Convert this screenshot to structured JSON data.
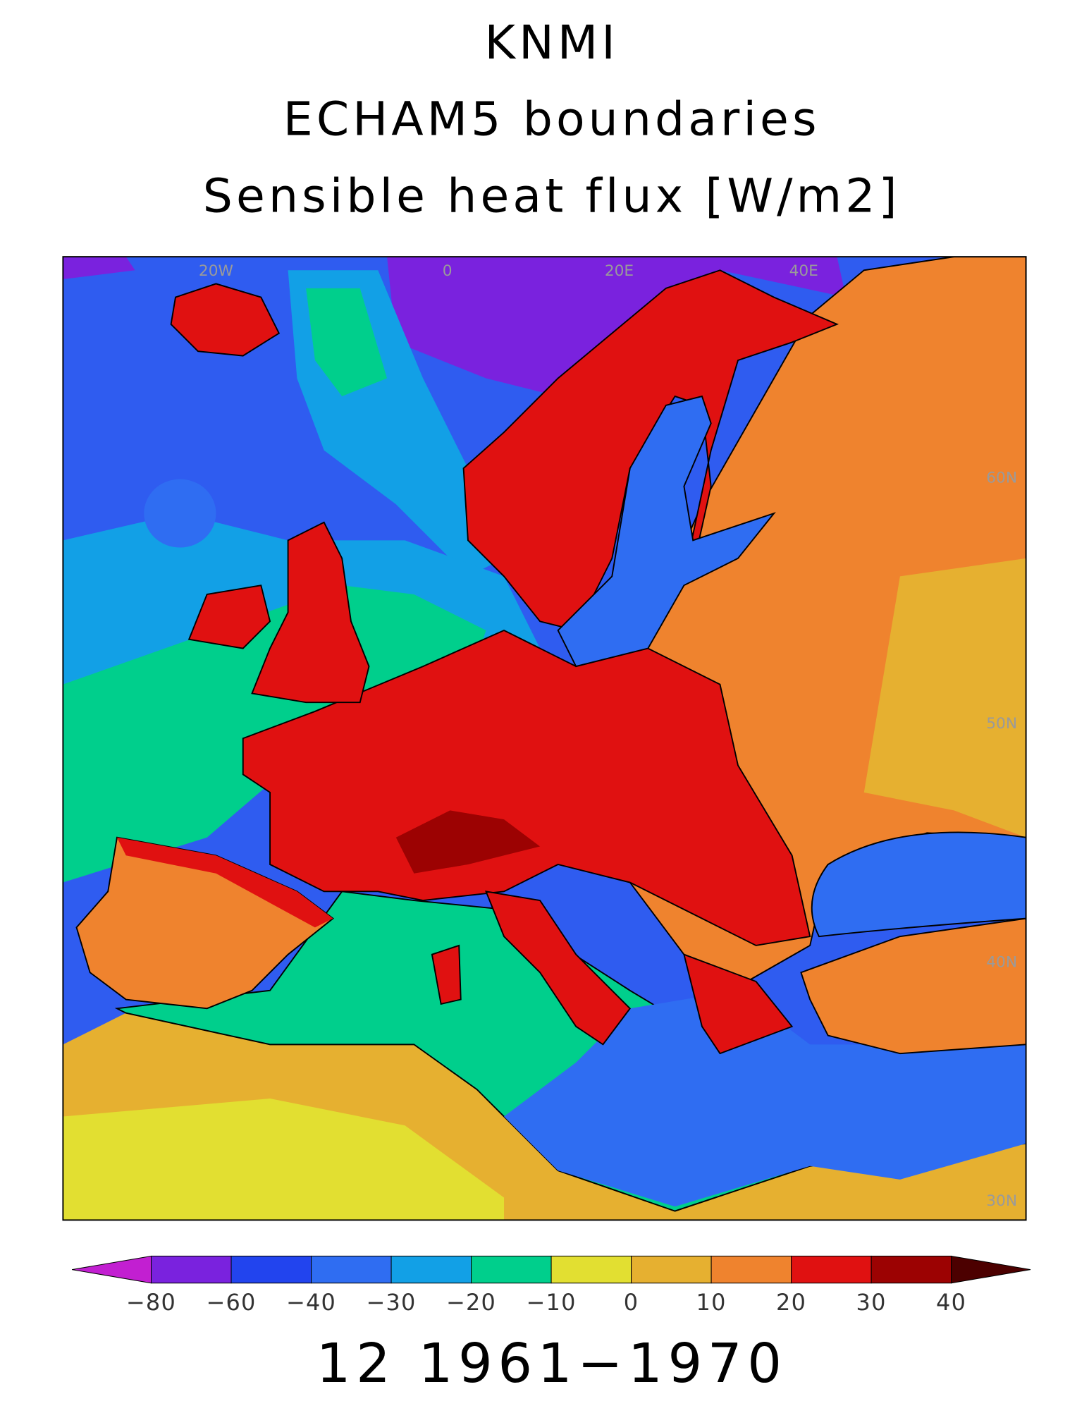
{
  "header": {
    "lines": [
      "KNMI",
      "ECHAM5 boundaries",
      "Sensible heat flux [W/m2]"
    ]
  },
  "map": {
    "lon_labels": [
      "20W",
      "0",
      "20E",
      "40E"
    ],
    "lat_labels": [
      "60N",
      "50N",
      "40N",
      "30N"
    ]
  },
  "colorbar": {
    "colors": [
      "#c21fd1",
      "#7a22de",
      "#2244ee",
      "#2f6df2",
      "#12a0e6",
      "#00cf8c",
      "#e2df31",
      "#e6b030",
      "#ef832e",
      "#e01111",
      "#9c0202",
      "#4c0000"
    ],
    "ticks": [
      {
        "value": -80,
        "label": "−80"
      },
      {
        "value": -60,
        "label": "−60"
      },
      {
        "value": -40,
        "label": "−40"
      },
      {
        "value": -30,
        "label": "−30"
      },
      {
        "value": -20,
        "label": "−20"
      },
      {
        "value": -10,
        "label": "−10"
      },
      0,
      10,
      20,
      30,
      40
    ]
  },
  "footer": "12 1961−1970"
}
